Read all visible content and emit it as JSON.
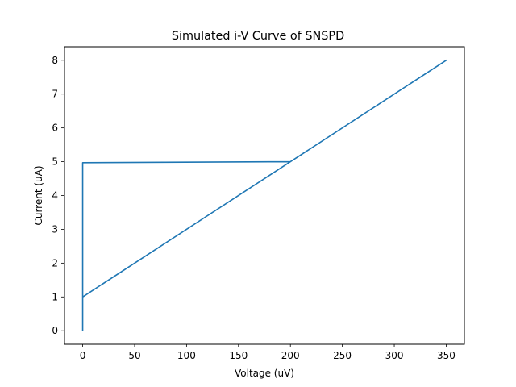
{
  "chart_data": {
    "type": "line",
    "title": "Simulated i-V Curve of SNSPD",
    "xlabel": "Voltage (uV)",
    "ylabel": "Current (uA)",
    "xlim": [
      -17.5,
      367.5
    ],
    "ylim": [
      -0.4,
      8.4
    ],
    "xticks": [
      0,
      50,
      100,
      150,
      200,
      250,
      300,
      350
    ],
    "yticks": [
      0,
      1,
      2,
      3,
      4,
      5,
      6,
      7,
      8
    ],
    "grid": false,
    "legend": "none",
    "series": [
      {
        "color": "#1f77b4",
        "x": [
          0,
          0,
          0,
          0,
          200,
          350,
          200,
          0,
          0,
          0
        ],
        "y": [
          0,
          1,
          4.95,
          4.97,
          5.0,
          8.0,
          5.0,
          1.0,
          0.3,
          0
        ]
      }
    ]
  }
}
